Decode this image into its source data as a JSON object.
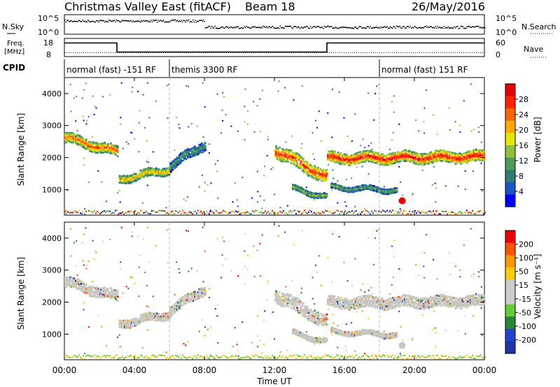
{
  "header": {
    "title": "Christmas Valley East (fitACF)",
    "beam": "Beam 18",
    "date": "26/May/2016"
  },
  "nsky_panel": {
    "left_label": "N.Sky",
    "left_ticks": [
      "10^5",
      "10^0"
    ],
    "right_ticks": [
      "10^5",
      "10^0"
    ],
    "right_label": "N.Search"
  },
  "freq_panel": {
    "left_label_1": "Freq.",
    "left_label_2": "[MHz]",
    "left_ticks": [
      "18",
      "8"
    ],
    "right_ticks": [
      "60",
      "0"
    ],
    "right_label": "Nave",
    "freq_steps": [
      {
        "t": 0,
        "v": 15.5
      },
      {
        "t": 3,
        "v": 10.5
      },
      {
        "t": 15,
        "v": 15.5
      },
      {
        "t": 24,
        "v": 15.5
      }
    ],
    "nave_level": 13
  },
  "cpid": {
    "label": "CPID",
    "modes": [
      {
        "start": 0,
        "end": 6,
        "text": "normal (fast) -151 RF"
      },
      {
        "start": 6,
        "end": 18,
        "text": "themis 3300 RF"
      },
      {
        "start": 18,
        "end": 24,
        "text": "normal (fast) 151 RF"
      }
    ]
  },
  "colors": {
    "power": [
      "#0000ff",
      "#1a55c8",
      "#2e7d72",
      "#4d9a5a",
      "#8fc23a",
      "#e6e600",
      "#ffaa00",
      "#ff6600",
      "#ff2200",
      "#e60000"
    ],
    "velocity": [
      "#2233aa",
      "#2244cc",
      "#228833",
      "#66cc33",
      "#cccccc",
      "#cccccc",
      "#ffcc00",
      "#ff9900",
      "#ff5500",
      "#ee0000"
    ],
    "ground_scatter": "#c8c8c0"
  },
  "chart_data": [
    {
      "type": "heatmap",
      "name": "power",
      "ylabel": "Slant Range [km]",
      "ylim": [
        200,
        4500
      ],
      "yticks": [
        1000,
        2000,
        3000,
        4000
      ],
      "xlim": [
        0,
        24
      ],
      "colorbar": {
        "label": "Power [dB]",
        "ticks": [
          "28",
          "24",
          "20",
          "16",
          "12",
          "8",
          "4"
        ]
      },
      "scatter_bands": [
        {
          "x": [
            0,
            3
          ],
          "y": [
            2650,
            2200
          ],
          "width": 320,
          "peak": 24
        },
        {
          "x": [
            3.1,
            6
          ],
          "y": [
            1350,
            1650
          ],
          "width": 250,
          "peak": 20
        },
        {
          "x": [
            6,
            8
          ],
          "y": [
            1750,
            2450
          ],
          "width": 300,
          "peak": 10
        },
        {
          "x": [
            12,
            15
          ],
          "y": [
            2250,
            1400
          ],
          "width": 420,
          "peak": 26
        },
        {
          "x": [
            15,
            24
          ],
          "y": [
            2000,
            2050
          ],
          "width": 350,
          "peak": 28
        },
        {
          "x": [
            13,
            15
          ],
          "y": [
            1050,
            800
          ],
          "width": 150,
          "peak": 14
        },
        {
          "x": [
            15.2,
            19
          ],
          "y": [
            1100,
            1000
          ],
          "width": 150,
          "peak": 12
        }
      ],
      "hotspot": {
        "x": 19.3,
        "y": 650,
        "value": 30
      }
    },
    {
      "type": "heatmap",
      "name": "velocity",
      "ylabel": "Slant Range [km]",
      "xlabel": "Time UT",
      "ylim": [
        200,
        4500
      ],
      "yticks": [
        1000,
        2000,
        3000,
        4000
      ],
      "xlim": [
        0,
        24
      ],
      "xticks": [
        "00:00",
        "04:00",
        "08:00",
        "12:00",
        "16:00",
        "20:00",
        "00:00"
      ],
      "colorbar": {
        "label": "Velocity [m s⁻¹]",
        "ticks": [
          "200",
          "100",
          "50",
          "15",
          "-15",
          "-50",
          "-100",
          "-200"
        ]
      }
    }
  ]
}
